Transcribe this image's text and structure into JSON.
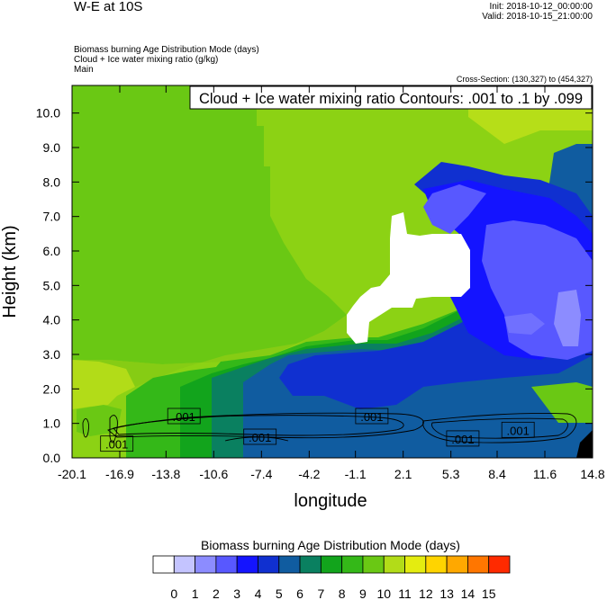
{
  "header": {
    "title": "W-E at 10S",
    "init": "Init: 2018-10-12_00:00:00",
    "valid": "Valid: 2018-10-15_21:00:00",
    "fields": [
      "Biomass burning Age Distribution Mode   (days)",
      "Cloud + Ice water mixing ratio   (g/kg)",
      "Main"
    ],
    "cross_section": "Cross-Section: (130,327) to (454,327)"
  },
  "chart_data": {
    "type": "heatmap",
    "contour_title": "Cloud + Ice water mixing ratio Contours: .001 to .1 by .099",
    "xlabel": "longitude",
    "ylabel": "Height (km)",
    "xlim": [
      -20.1,
      14.8
    ],
    "ylim": [
      0.0,
      10.8
    ],
    "x_ticks": [
      "-20.1",
      "-16.9",
      "-13.8",
      "-10.6",
      "-7.4",
      "-4.2",
      "-1.1",
      "2.1",
      "5.3",
      "8.4",
      "11.6",
      "14.8"
    ],
    "y_ticks": [
      "0.0",
      "1.0",
      "2.0",
      "3.0",
      "4.0",
      "5.0",
      "6.0",
      "7.0",
      "8.0",
      "9.0",
      "10.0"
    ],
    "contour_labels": [
      {
        "text": ".001",
        "x": -12.6,
        "y": 1.2
      },
      {
        "text": ".001",
        "x": 0.0,
        "y": 1.2
      },
      {
        "text": ".001",
        "x": -17.1,
        "y": 0.4
      },
      {
        "text": ".001",
        "x": -7.5,
        "y": 0.6
      },
      {
        "text": ".001",
        "x": 6.1,
        "y": 0.55
      },
      {
        "text": ".001",
        "x": 9.8,
        "y": 0.8
      }
    ],
    "colorbar": {
      "title": "Biomass burning Age Distribution Mode  (days)",
      "labels": [
        "0",
        "1",
        "2",
        "3",
        "4",
        "5",
        "6",
        "7",
        "8",
        "9",
        "10",
        "11",
        "12",
        "13",
        "14",
        "15"
      ],
      "colors": [
        "#ffffff",
        "#c4c4ff",
        "#8c8cff",
        "#5858ff",
        "#1414ff",
        "#1030d0",
        "#105ca0",
        "#0a8060",
        "#12a41c",
        "#34b818",
        "#6ac814",
        "#b2dc18",
        "#e4ec10",
        "#ffd400",
        "#ffa800",
        "#ff7600",
        "#ff2a00"
      ]
    },
    "fields": [
      {
        "name": "age",
        "unit": "days"
      },
      {
        "name": "cloud_ice",
        "unit": "g/kg"
      }
    ]
  }
}
